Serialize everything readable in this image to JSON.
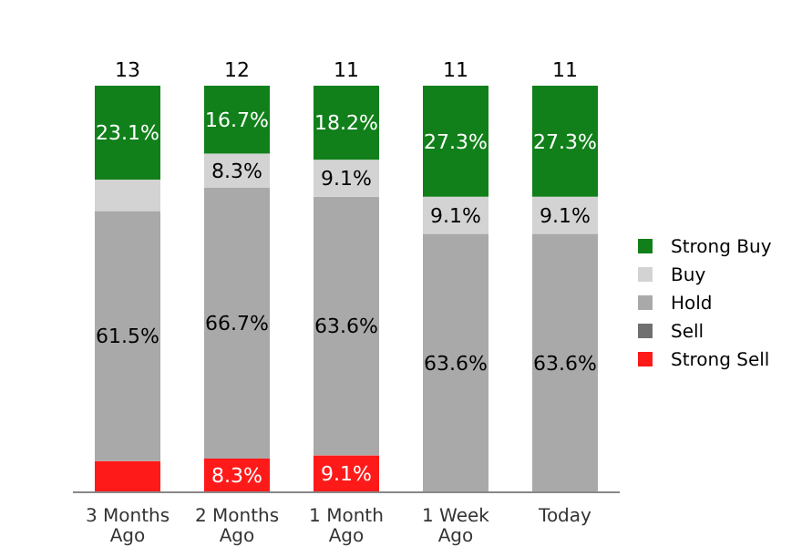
{
  "chart_data": {
    "type": "bar",
    "stacked": true,
    "categories": [
      "3 Months\nAgo",
      "2 Months\nAgo",
      "1 Month\nAgo",
      "1 Week\nAgo",
      "Today"
    ],
    "series": [
      {
        "name": "Strong Sell",
        "color": "#ff1a1a",
        "values": [
          7.7,
          8.3,
          9.1,
          0,
          0
        ],
        "value_labels": [
          null,
          "8.3%",
          "9.1%",
          null,
          null
        ]
      },
      {
        "name": "Sell",
        "color": "#707070",
        "values": [
          0,
          0,
          0,
          0,
          0
        ],
        "value_labels": [
          null,
          null,
          null,
          null,
          null
        ]
      },
      {
        "name": "Hold",
        "color": "#a9a9a9",
        "values": [
          61.5,
          66.7,
          63.6,
          63.6,
          63.6
        ],
        "value_labels": [
          "61.5%",
          "66.7%",
          "63.6%",
          "63.6%",
          "63.6%"
        ]
      },
      {
        "name": "Buy",
        "color": "#d3d3d3",
        "values": [
          7.7,
          8.3,
          9.1,
          9.1,
          9.1
        ],
        "value_labels": [
          null,
          "8.3%",
          "9.1%",
          "9.1%",
          "9.1%"
        ]
      },
      {
        "name": "Strong Buy",
        "color": "#11801a",
        "values": [
          23.1,
          16.7,
          18.2,
          27.3,
          27.3
        ],
        "value_labels": [
          "23.1%",
          "16.7%",
          "18.2%",
          "27.3%",
          "27.3%"
        ]
      }
    ],
    "annotations": [
      {
        "text": "13",
        "x": "3 Months\nAgo",
        "y": 100
      },
      {
        "text": "12",
        "x": "2 Months\nAgo",
        "y": 100
      },
      {
        "text": "11",
        "x": "1 Month\nAgo",
        "y": 100
      },
      {
        "text": "11",
        "x": "1 Week\nAgo",
        "y": 100
      },
      {
        "text": "11",
        "x": "Today",
        "y": 100
      }
    ],
    "legend": "right"
  }
}
